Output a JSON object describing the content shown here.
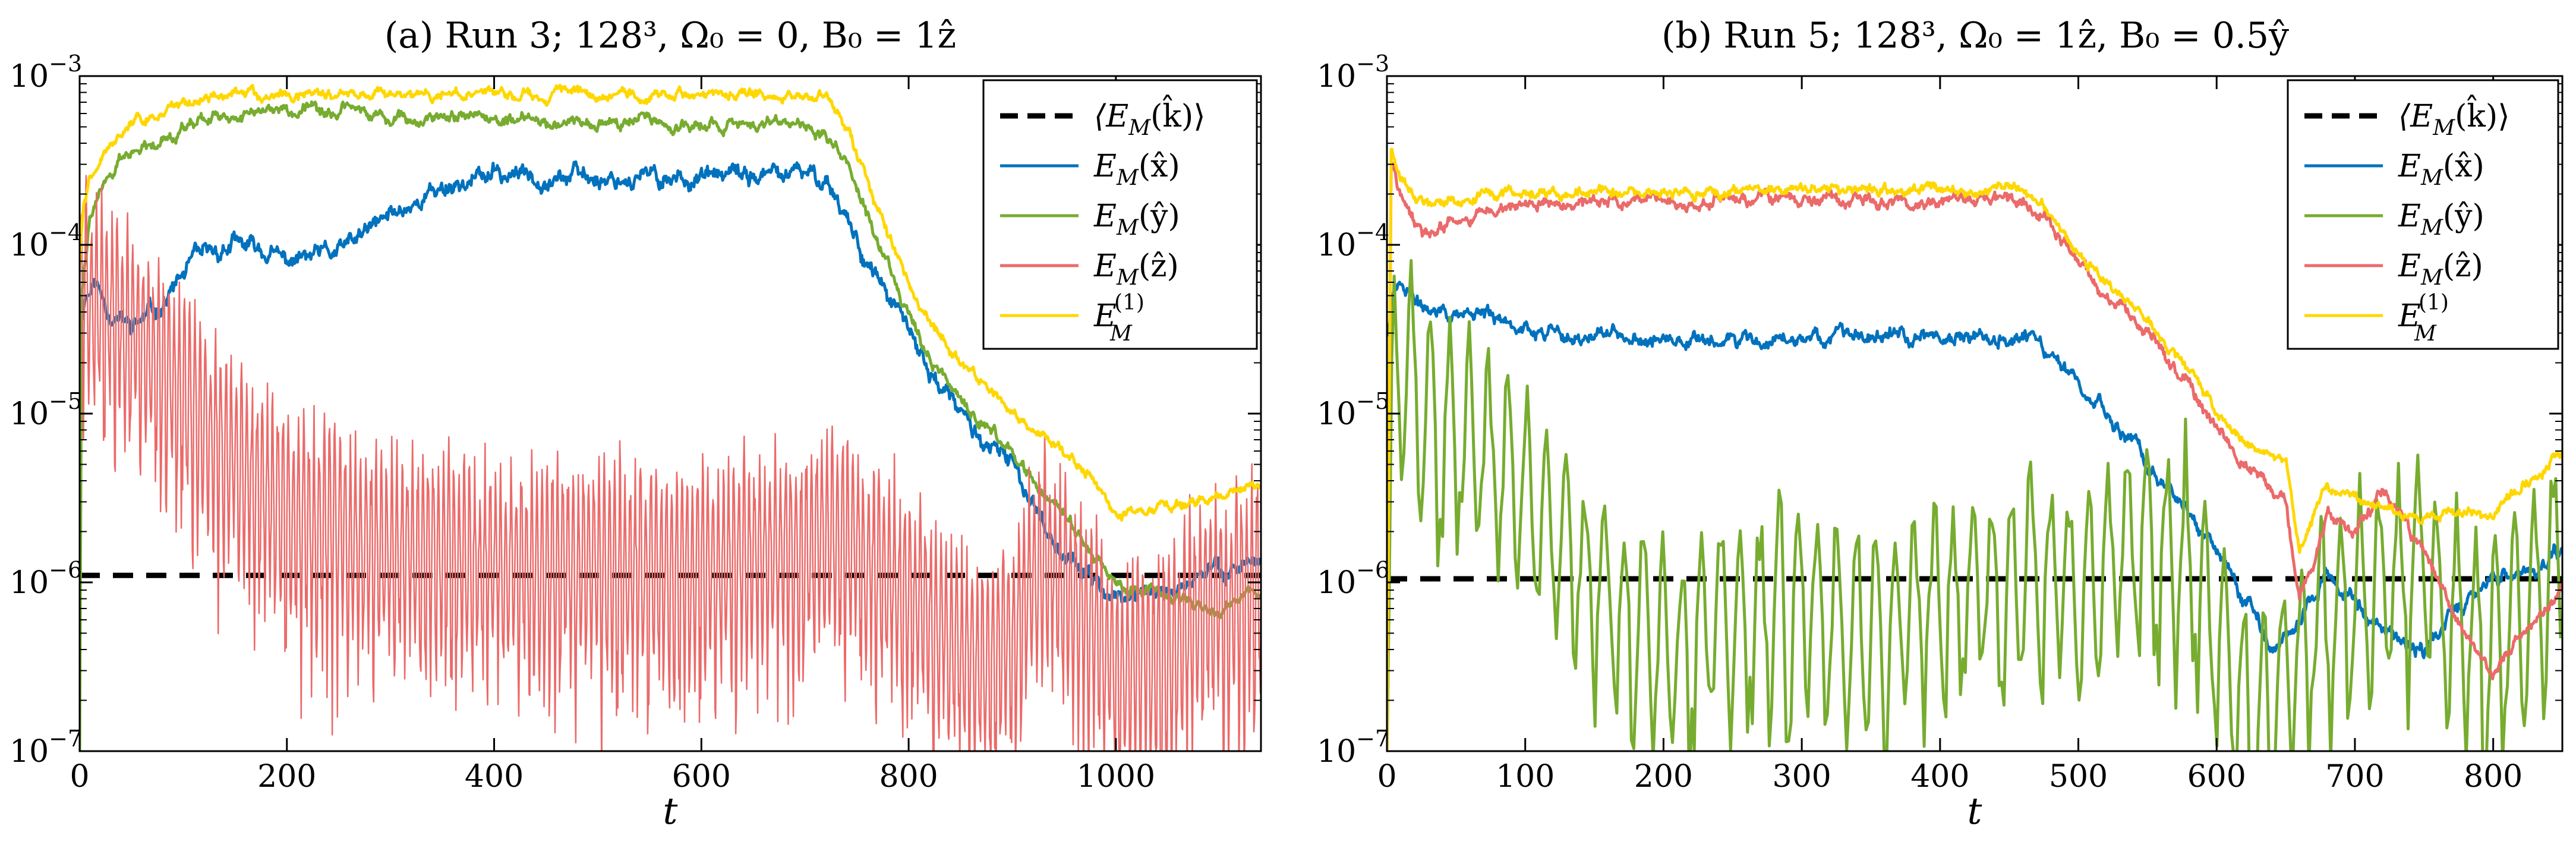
{
  "chart_data": [
    {
      "type": "line",
      "title": "(a) Run 3; 128³, Ω₀ = 0, B₀ = 1ẑ",
      "xlabel": "t",
      "ylabel": "",
      "xlim": [
        0,
        1140
      ],
      "ylim": [
        1e-07,
        0.001
      ],
      "yscale": "log",
      "xticks": [
        0,
        200,
        400,
        600,
        800,
        1000
      ],
      "xtick_labels": [
        "0",
        "200",
        "400",
        "600",
        "800",
        "1000"
      ],
      "yticks": [
        1e-07,
        1e-06,
        1e-05,
        0.0001,
        0.001
      ],
      "ytick_labels": [
        {
          "base": "10",
          "exp": "−7"
        },
        {
          "base": "10",
          "exp": "−6"
        },
        {
          "base": "10",
          "exp": "−5"
        },
        {
          "base": "10",
          "exp": "−4"
        },
        {
          "base": "10",
          "exp": "−3"
        }
      ],
      "legend_position": "top-right",
      "series": [
        {
          "name": "⟨E_M(k̂)⟩",
          "label_html_main": "⟨E",
          "label_sub": "M",
          "label_tail": "(k̂)⟩",
          "color": "#000000",
          "dashed": true,
          "style": "flat",
          "x": [
            0,
            1140
          ],
          "values": [
            1.1e-06,
            1.1e-06
          ]
        },
        {
          "name": "E_M(x̂)",
          "label_html_main": "E",
          "label_sub": "M",
          "label_tail": "(x̂)",
          "color": "#0072BD",
          "style": "smooth",
          "noise": 0.06,
          "seed": 11,
          "x": [
            0,
            5,
            15,
            30,
            50,
            80,
            110,
            150,
            170,
            200,
            250,
            300,
            350,
            400,
            450,
            500,
            600,
            650,
            700,
            720,
            740,
            760,
            780,
            800,
            820,
            850,
            880,
            900,
            920,
            940,
            960,
            980,
            1000,
            1050,
            1100,
            1140
          ],
          "values": [
            3e-05,
            5e-05,
            6e-05,
            4e-05,
            3.2e-05,
            4.5e-05,
            8e-05,
            0.0001,
            9.5e-05,
            8e-05,
            9e-05,
            0.00015,
            0.00022,
            0.00026,
            0.00026,
            0.00025,
            0.00025,
            0.000255,
            0.00026,
            0.00025,
            0.00015,
            8e-05,
            5e-05,
            3e-05,
            1.8e-05,
            1e-05,
            6e-06,
            5e-06,
            3e-06,
            1.8e-06,
            1.3e-06,
            1e-06,
            8e-07,
            9e-07,
            1.2e-06,
            1.4e-06
          ]
        },
        {
          "name": "E_M(ŷ)",
          "label_html_main": "E",
          "label_sub": "M",
          "label_tail": "(ŷ)",
          "color": "#77AC30",
          "style": "smooth",
          "noise": 0.04,
          "seed": 22,
          "x": [
            0,
            2,
            10,
            30,
            60,
            100,
            150,
            200,
            250,
            300,
            400,
            500,
            600,
            700,
            720,
            740,
            760,
            780,
            800,
            820,
            850,
            880,
            900,
            920,
            950,
            980,
            1000,
            1050,
            1100,
            1140
          ],
          "values": [
            1e-07,
            5e-05,
            0.00015,
            0.00028,
            0.00038,
            0.0005,
            0.00062,
            0.00062,
            0.00061,
            0.00058,
            0.00056,
            0.00053,
            0.00052,
            0.00052,
            0.00048,
            0.0003,
            0.00015,
            8e-05,
            4e-05,
            2e-05,
            1.2e-05,
            8e-06,
            6e-06,
            4e-06,
            2.5e-06,
            1.5e-06,
            1e-06,
            8e-07,
            7e-07,
            9e-07
          ]
        },
        {
          "name": "E_M(ẑ)",
          "label_html_main": "E",
          "label_sub": "M",
          "label_tail": "(ẑ)",
          "color": "#EB6A6A",
          "style": "osc",
          "seed": 33,
          "period": 5,
          "amp_factor": 4,
          "x": [
            0,
            10,
            30,
            50,
            100,
            150,
            200,
            250,
            300,
            350,
            400,
            450,
            500,
            550,
            600,
            650,
            700,
            720,
            750,
            780,
            800,
            820,
            850,
            870,
            900,
            930,
            950,
            980,
            1000,
            1050,
            1100,
            1140
          ],
          "values": [
            5e-05,
            5e-05,
            4e-05,
            3e-05,
            1.2e-05,
            5e-06,
            2.5e-06,
            2e-06,
            1.5e-06,
            1.5e-06,
            1.2e-06,
            1.2e-06,
            1.2e-06,
            1.2e-06,
            1.2e-06,
            1.5e-06,
            1.5e-06,
            2e-06,
            1.5e-06,
            1e-06,
            8e-07,
            6e-07,
            4e-07,
            3e-07,
            5e-07,
            1.5e-06,
            1e-06,
            5e-07,
            3e-07,
            4e-07,
            8e-07,
            1e-06
          ]
        },
        {
          "name": "E_M^(1)",
          "label_html_main": "E",
          "label_sub": "M",
          "label_sup": "(1)",
          "label_tail": "",
          "color": "#FFD700",
          "style": "smooth",
          "noise": 0.035,
          "seed": 44,
          "x": [
            0,
            3,
            10,
            30,
            60,
            100,
            130,
            150,
            200,
            300,
            400,
            500,
            600,
            700,
            720,
            740,
            760,
            780,
            800,
            820,
            850,
            880,
            900,
            920,
            950,
            980,
            1000,
            1050,
            1100,
            1140
          ],
          "values": [
            8e-05,
            0.00015,
            0.00025,
            0.0004,
            0.00055,
            0.0007,
            0.00076,
            0.00076,
            0.00075,
            0.00077,
            0.00078,
            0.00078,
            0.00078,
            0.00078,
            0.00076,
            0.0005,
            0.00025,
            0.00012,
            6e-05,
            3.5e-05,
            2e-05,
            1.4e-05,
            1e-05,
            8e-06,
            6e-06,
            4e-06,
            2.5e-06,
            2.8e-06,
            3.2e-06,
            3.8e-06
          ]
        }
      ]
    },
    {
      "type": "line",
      "title": "(b) Run 5; 128³, Ω₀ = 1ẑ, B₀ = 0.5ŷ",
      "xlabel": "t",
      "ylabel": "",
      "xlim": [
        0,
        850
      ],
      "ylim": [
        1e-07,
        0.001
      ],
      "yscale": "log",
      "xticks": [
        0,
        100,
        200,
        300,
        400,
        500,
        600,
        700,
        800
      ],
      "xtick_labels": [
        "0",
        "100",
        "200",
        "300",
        "400",
        "500",
        "600",
        "700",
        "800"
      ],
      "yticks": [
        1e-07,
        1e-06,
        1e-05,
        0.0001,
        0.001
      ],
      "ytick_labels": [
        {
          "base": "10",
          "exp": "−7"
        },
        {
          "base": "10",
          "exp": "−6"
        },
        {
          "base": "10",
          "exp": "−5"
        },
        {
          "base": "10",
          "exp": "−4"
        },
        {
          "base": "10",
          "exp": "−3"
        }
      ],
      "legend_position": "top-right",
      "series": [
        {
          "name": "⟨E_M(k̂)⟩",
          "label_html_main": "⟨E",
          "label_sub": "M",
          "label_tail": "(k̂)⟩",
          "color": "#000000",
          "dashed": true,
          "style": "flat",
          "x": [
            0,
            850
          ],
          "values": [
            1.05e-06,
            1.05e-06
          ]
        },
        {
          "name": "E_M(x̂)",
          "label_html_main": "E",
          "label_sub": "M",
          "label_tail": "(x̂)",
          "color": "#0072BD",
          "style": "smooth",
          "noise": 0.05,
          "seed": 55,
          "x": [
            0,
            5,
            20,
            50,
            100,
            150,
            200,
            300,
            400,
            460,
            480,
            500,
            520,
            540,
            560,
            580,
            600,
            620,
            640,
            660,
            680,
            700,
            720,
            750,
            780,
            800,
            830,
            850
          ],
          "values": [
            3e-05,
            6e-05,
            4.5e-05,
            4e-05,
            3.3e-05,
            2.9e-05,
            2.7e-05,
            2.8e-05,
            2.9e-05,
            2.8e-05,
            2.3e-05,
            1.5e-05,
            1e-05,
            6e-06,
            4e-06,
            2.5e-06,
            1.5e-06,
            8e-07,
            4e-07,
            6e-07,
            1.2e-06,
            8e-07,
            5e-07,
            4e-07,
            8e-07,
            1e-06,
            1.2e-06,
            1.5e-06
          ]
        },
        {
          "name": "E_M(ŷ)",
          "label_html_main": "E",
          "label_sub": "M",
          "label_tail": "(ŷ)",
          "color": "#77AC30",
          "style": "osc",
          "seed": 66,
          "period": 14,
          "amp_factor": 6,
          "x": [
            0,
            5,
            15,
            40,
            80,
            120,
            160,
            200,
            250,
            300,
            350,
            400,
            450,
            480,
            500,
            550,
            580,
            600,
            620,
            630,
            650,
            680,
            700,
            750,
            780,
            800,
            850
          ],
          "values": [
            1e-07,
            3e-05,
            1.5e-05,
            8e-06,
            5e-06,
            2e-06,
            8e-07,
            4e-07,
            6e-07,
            8e-07,
            5e-07,
            8e-07,
            1e-06,
            1.2e-06,
            1e-06,
            1.8e-06,
            1.5e-06,
            5e-07,
            2e-07,
            1.5e-07,
            3e-07,
            6e-07,
            8e-07,
            1.2e-06,
            5e-07,
            4e-07,
            1.5e-06
          ]
        },
        {
          "name": "E_M(ẑ)",
          "label_html_main": "E",
          "label_sub": "M",
          "label_tail": "(ẑ)",
          "color": "#EB6A6A",
          "style": "smooth",
          "noise": 0.04,
          "seed": 77,
          "x": [
            0,
            3,
            10,
            20,
            30,
            50,
            100,
            200,
            300,
            400,
            460,
            480,
            500,
            520,
            550,
            580,
            600,
            620,
            650,
            660,
            680,
            700,
            720,
            750,
            780,
            800,
            830,
            850
          ],
          "values": [
            1e-07,
            0.0003,
            0.0002,
            0.00013,
            0.00011,
            0.00014,
            0.00017,
            0.00018,
            0.000185,
            0.000185,
            0.00018,
            0.00013,
            8e-05,
            5e-05,
            3e-05,
            1.5e-05,
            8e-06,
            5e-06,
            3e-06,
            7e-07,
            2.5e-06,
            2e-06,
            3.5e-06,
            1.5e-06,
            5e-07,
            3e-07,
            6e-07,
            1e-06
          ]
        },
        {
          "name": "E_M^(1)",
          "label_html_main": "E",
          "label_sub": "M",
          "label_sup": "(1)",
          "label_tail": "",
          "color": "#FFD700",
          "style": "smooth",
          "noise": 0.035,
          "seed": 88,
          "x": [
            0,
            3,
            10,
            30,
            60,
            100,
            200,
            300,
            400,
            460,
            480,
            500,
            520,
            550,
            580,
            600,
            620,
            650,
            660,
            680,
            700,
            750,
            800,
            850
          ],
          "values": [
            1e-07,
            0.0004,
            0.00025,
            0.00017,
            0.00019,
            0.0002,
            0.000205,
            0.00021,
            0.00021,
            0.00021,
            0.00015,
            9e-05,
            6e-05,
            3.5e-05,
            1.8e-05,
            1e-05,
            7e-06,
            5e-06,
            1.5e-06,
            4e-06,
            3e-06,
            2.5e-06,
            2.5e-06,
            6e-06
          ]
        }
      ]
    }
  ]
}
